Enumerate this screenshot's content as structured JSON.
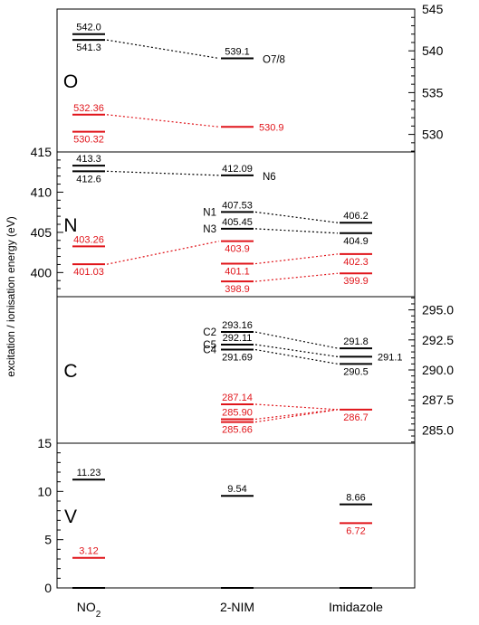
{
  "chart_data": {
    "type": "energy-level-diagram",
    "ylabel": "excitation / ionisation energy (eV)",
    "categories": [
      "NO2",
      "2-NIM",
      "Imidazole"
    ],
    "category_labels": [
      {
        "main": "NO",
        "sub": "2"
      },
      {
        "main": "2-NIM",
        "sub": ""
      },
      {
        "main": "Imidazole",
        "sub": ""
      }
    ],
    "colors": {
      "ionisation": "#000000",
      "excitation": "#e0141a"
    },
    "panels": [
      {
        "id": "O",
        "label": "O",
        "ylim": [
          527.9,
          545
        ],
        "axis_side": "right",
        "ticks": [
          530,
          535,
          540,
          545
        ],
        "levels": [
          {
            "id": "o-no2-542",
            "cat": 0,
            "y": 542.0,
            "kind": "ionisation",
            "label": "542.0",
            "label_pos": "above"
          },
          {
            "id": "o-no2-5413",
            "cat": 0,
            "y": 541.3,
            "kind": "ionisation",
            "label": "541.3",
            "label_pos": "below"
          },
          {
            "id": "o-nim-5391",
            "cat": 1,
            "y": 539.1,
            "kind": "ionisation",
            "label": "539.1",
            "label_pos": "above",
            "side_label": "O7/8"
          },
          {
            "id": "o-no2-53236",
            "cat": 0,
            "y": 532.36,
            "kind": "excitation",
            "label": "532.36",
            "label_pos": "above"
          },
          {
            "id": "o-nim-5309",
            "cat": 1,
            "y": 530.9,
            "kind": "excitation",
            "label": "530.9",
            "label_pos": "right"
          },
          {
            "id": "o-no2-53032",
            "cat": 0,
            "y": 530.32,
            "kind": "excitation",
            "label": "530.32",
            "label_pos": "below"
          }
        ],
        "connectors": [
          {
            "from": "o-no2-5413",
            "to": "o-nim-5391",
            "kind": "ionisation"
          },
          {
            "from": "o-no2-53236",
            "to": "o-nim-5309",
            "kind": "excitation"
          }
        ]
      },
      {
        "id": "N",
        "label": "N",
        "ylim": [
          397,
          415
        ],
        "axis_side": "left",
        "ticks": [
          400,
          405,
          410,
          415
        ],
        "levels": [
          {
            "id": "n-no2-4133",
            "cat": 0,
            "y": 413.3,
            "kind": "ionisation",
            "label": "413.3",
            "label_pos": "above"
          },
          {
            "id": "n-no2-4126",
            "cat": 0,
            "y": 412.6,
            "kind": "ionisation",
            "label": "412.6",
            "label_pos": "below"
          },
          {
            "id": "n-nim-41209",
            "cat": 1,
            "y": 412.09,
            "kind": "ionisation",
            "label": "412.09",
            "label_pos": "above",
            "side_label": "N6"
          },
          {
            "id": "n-nim-40753",
            "cat": 1,
            "y": 407.53,
            "kind": "ionisation",
            "label": "407.53",
            "label_pos": "above",
            "left_label": "N1"
          },
          {
            "id": "n-nim-40545",
            "cat": 1,
            "y": 405.45,
            "kind": "ionisation",
            "label": "405.45",
            "label_pos": "above",
            "left_label": "N3"
          },
          {
            "id": "n-im-4062",
            "cat": 2,
            "y": 406.2,
            "kind": "ionisation",
            "label": "406.2",
            "label_pos": "above"
          },
          {
            "id": "n-im-4049",
            "cat": 2,
            "y": 404.9,
            "kind": "ionisation",
            "label": "404.9",
            "label_pos": "below"
          },
          {
            "id": "n-no2-40326",
            "cat": 0,
            "y": 403.26,
            "kind": "excitation",
            "label": "403.26",
            "label_pos": "above"
          },
          {
            "id": "n-no2-40103",
            "cat": 0,
            "y": 401.03,
            "kind": "excitation",
            "label": "401.03",
            "label_pos": "below"
          },
          {
            "id": "n-nim-4039",
            "cat": 1,
            "y": 403.9,
            "kind": "excitation",
            "label": "403.9",
            "label_pos": "below"
          },
          {
            "id": "n-nim-4011",
            "cat": 1,
            "y": 401.1,
            "kind": "excitation",
            "label": "401.1",
            "label_pos": "below"
          },
          {
            "id": "n-nim-3989",
            "cat": 1,
            "y": 398.9,
            "kind": "excitation",
            "label": "398.9",
            "label_pos": "below"
          },
          {
            "id": "n-im-4023",
            "cat": 2,
            "y": 402.3,
            "kind": "excitation",
            "label": "402.3",
            "label_pos": "below"
          },
          {
            "id": "n-im-3999",
            "cat": 2,
            "y": 399.9,
            "kind": "excitation",
            "label": "399.9",
            "label_pos": "below"
          }
        ],
        "connectors": [
          {
            "from": "n-no2-4126",
            "to": "n-nim-41209",
            "kind": "ionisation"
          },
          {
            "from": "n-nim-40753",
            "to": "n-im-4062",
            "kind": "ionisation"
          },
          {
            "from": "n-nim-40545",
            "to": "n-im-4049",
            "kind": "ionisation"
          },
          {
            "from": "n-no2-40103",
            "to": "n-nim-4039",
            "kind": "excitation"
          },
          {
            "from": "n-nim-4011",
            "to": "n-im-4023",
            "kind": "excitation"
          },
          {
            "from": "n-nim-3989",
            "to": "n-im-3999",
            "kind": "excitation"
          }
        ]
      },
      {
        "id": "C",
        "label": "C",
        "ylim": [
          283.9,
          296.1
        ],
        "axis_side": "right",
        "ticks": [
          285.0,
          287.5,
          290.0,
          292.5,
          295.0
        ],
        "tick_labels": [
          "285.0",
          "287.5",
          "290.0",
          "292.5",
          "295.0"
        ],
        "levels": [
          {
            "id": "c-nim-29316",
            "cat": 1,
            "y": 293.16,
            "kind": "ionisation",
            "label": "293.16",
            "label_pos": "above",
            "left_label": "C2"
          },
          {
            "id": "c-nim-29211",
            "cat": 1,
            "y": 292.11,
            "kind": "ionisation",
            "label": "292.11",
            "label_pos": "above",
            "left_label": "C5"
          },
          {
            "id": "c-nim-29169",
            "cat": 1,
            "y": 291.69,
            "kind": "ionisation",
            "label": "291.69",
            "label_pos": "below",
            "left_label": "C4"
          },
          {
            "id": "c-im-2918",
            "cat": 2,
            "y": 291.8,
            "kind": "ionisation",
            "label": "291.8",
            "label_pos": "above"
          },
          {
            "id": "c-im-2911",
            "cat": 2,
            "y": 291.1,
            "kind": "ionisation",
            "label": "291.1",
            "label_pos": "right"
          },
          {
            "id": "c-im-2905",
            "cat": 2,
            "y": 290.5,
            "kind": "ionisation",
            "label": "290.5",
            "label_pos": "below"
          },
          {
            "id": "c-nim-28714",
            "cat": 1,
            "y": 287.14,
            "kind": "excitation",
            "label": "287.14",
            "label_pos": "above"
          },
          {
            "id": "c-nim-2859",
            "cat": 1,
            "y": 285.9,
            "kind": "excitation",
            "label": "285.90",
            "label_pos": "above"
          },
          {
            "id": "c-nim-28566",
            "cat": 1,
            "y": 285.66,
            "kind": "excitation",
            "label": "285.66",
            "label_pos": "below"
          },
          {
            "id": "c-im-2867",
            "cat": 2,
            "y": 286.7,
            "kind": "excitation",
            "label": "286.7",
            "label_pos": "below"
          }
        ],
        "connectors": [
          {
            "from": "c-nim-29316",
            "to": "c-im-2918",
            "kind": "ionisation"
          },
          {
            "from": "c-nim-29211",
            "to": "c-im-2911",
            "kind": "ionisation"
          },
          {
            "from": "c-nim-29169",
            "to": "c-im-2905",
            "kind": "ionisation"
          },
          {
            "from": "c-nim-28714",
            "to": "c-im-2867",
            "kind": "excitation"
          },
          {
            "from": "c-nim-2859",
            "to": "c-im-2867",
            "kind": "excitation"
          },
          {
            "from": "c-nim-28566",
            "to": "c-im-2867",
            "kind": "excitation"
          }
        ]
      },
      {
        "id": "V",
        "label": "V",
        "ylim": [
          0,
          15
        ],
        "axis_side": "left",
        "ticks": [
          0,
          5,
          10,
          15
        ],
        "levels": [
          {
            "id": "v-no2-1123",
            "cat": 0,
            "y": 11.23,
            "kind": "ionisation",
            "label": "11.23",
            "label_pos": "above"
          },
          {
            "id": "v-nim-954",
            "cat": 1,
            "y": 9.54,
            "kind": "ionisation",
            "label": "9.54",
            "label_pos": "above"
          },
          {
            "id": "v-im-866",
            "cat": 2,
            "y": 8.66,
            "kind": "ionisation",
            "label": "8.66",
            "label_pos": "above"
          },
          {
            "id": "v-no2-312",
            "cat": 0,
            "y": 3.12,
            "kind": "excitation",
            "label": "3.12",
            "label_pos": "above"
          },
          {
            "id": "v-im-672",
            "cat": 2,
            "y": 6.72,
            "kind": "excitation",
            "label": "6.72",
            "label_pos": "below"
          },
          {
            "id": "v-no2-0",
            "cat": 0,
            "y": 0,
            "kind": "ionisation",
            "label": "",
            "label_pos": "none"
          },
          {
            "id": "v-nim-0",
            "cat": 1,
            "y": 0,
            "kind": "ionisation",
            "label": "",
            "label_pos": "none"
          },
          {
            "id": "v-im-0",
            "cat": 2,
            "y": 0,
            "kind": "ionisation",
            "label": "",
            "label_pos": "none"
          }
        ],
        "connectors": []
      }
    ]
  }
}
